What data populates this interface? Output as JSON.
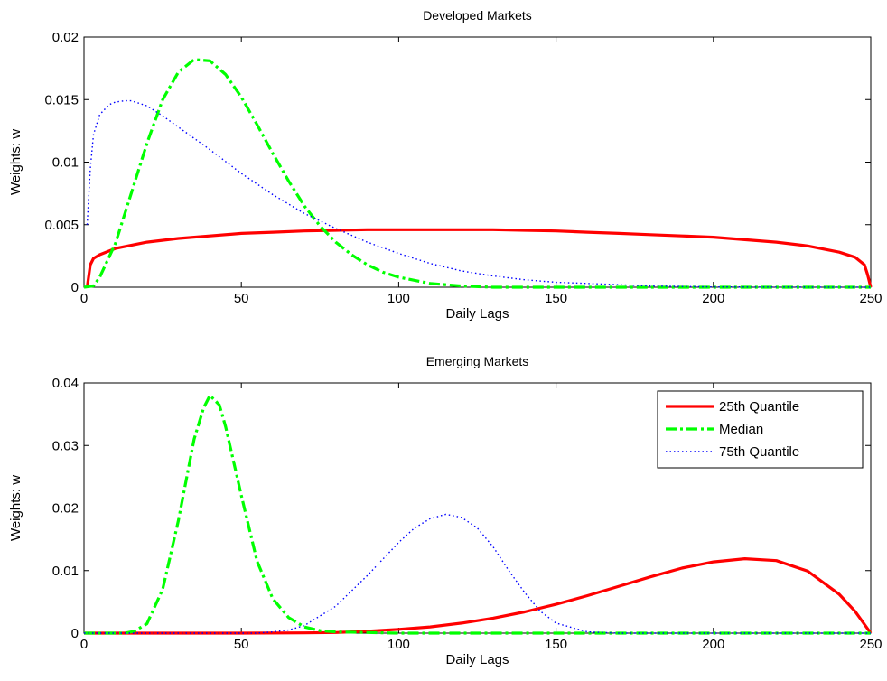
{
  "chart_data": [
    {
      "type": "line",
      "title": "Developed Markets",
      "xlabel": "Daily Lags",
      "ylabel": "Weights: w",
      "xlim": [
        0,
        250
      ],
      "ylim": [
        0,
        0.02
      ],
      "xticks": [
        0,
        50,
        100,
        150,
        200,
        250
      ],
      "yticks": [
        0,
        0.005,
        0.01,
        0.015,
        0.02
      ],
      "xtick_labels": [
        "0",
        "50",
        "100",
        "150",
        "200",
        "250"
      ],
      "ytick_labels": [
        "0",
        "0.005",
        "0.01",
        "0.015",
        "0.02"
      ],
      "grid": false,
      "legend": null,
      "series": [
        {
          "name": "25th Quantile",
          "color": "#ff0000",
          "style": "solid",
          "x": [
            1,
            2,
            3,
            5,
            10,
            20,
            30,
            40,
            50,
            60,
            70,
            80,
            90,
            100,
            110,
            120,
            130,
            140,
            150,
            160,
            170,
            180,
            190,
            200,
            210,
            220,
            230,
            240,
            245,
            248,
            249,
            250
          ],
          "y": [
            0,
            0.0018,
            0.0023,
            0.0026,
            0.0031,
            0.0036,
            0.0039,
            0.0041,
            0.0043,
            0.0044,
            0.0045,
            0.00455,
            0.0046,
            0.0046,
            0.0046,
            0.0046,
            0.0046,
            0.00455,
            0.0045,
            0.0044,
            0.0043,
            0.0042,
            0.0041,
            0.004,
            0.0038,
            0.0036,
            0.0033,
            0.0028,
            0.0024,
            0.0018,
            0.001,
            0
          ]
        },
        {
          "name": "Median",
          "color": "#00ff00",
          "style": "dashdot",
          "x": [
            0,
            3,
            5,
            10,
            15,
            20,
            25,
            30,
            35,
            40,
            45,
            50,
            55,
            60,
            65,
            70,
            75,
            80,
            85,
            90,
            95,
            100,
            110,
            120,
            130,
            150,
            200,
            250
          ],
          "y": [
            0,
            0.0001,
            0.0008,
            0.0035,
            0.0075,
            0.0115,
            0.015,
            0.0172,
            0.0182,
            0.0181,
            0.017,
            0.0152,
            0.013,
            0.0107,
            0.0085,
            0.0065,
            0.0049,
            0.0036,
            0.0026,
            0.0018,
            0.0012,
            0.0008,
            0.0003,
            0.0001,
            0,
            0,
            0,
            0
          ]
        },
        {
          "name": "75th Quantile",
          "color": "#0000ff",
          "style": "dotted",
          "x": [
            1,
            2,
            3,
            5,
            8,
            10,
            13,
            15,
            20,
            25,
            30,
            40,
            50,
            60,
            70,
            80,
            90,
            100,
            110,
            120,
            130,
            140,
            150,
            160,
            170,
            180,
            200,
            250
          ],
          "y": [
            0.005,
            0.0095,
            0.0122,
            0.0138,
            0.0146,
            0.0148,
            0.0149,
            0.0149,
            0.0145,
            0.0137,
            0.0128,
            0.011,
            0.0091,
            0.0074,
            0.0059,
            0.0047,
            0.0036,
            0.0027,
            0.0019,
            0.0013,
            0.0009,
            0.0006,
            0.0004,
            0.0003,
            0.0002,
            0.0001,
            2e-05,
            0
          ]
        }
      ]
    },
    {
      "type": "line",
      "title": "Emerging Markets",
      "xlabel": "Daily Lags",
      "ylabel": "Weights: w",
      "xlim": [
        0,
        250
      ],
      "ylim": [
        0,
        0.04
      ],
      "xticks": [
        0,
        50,
        100,
        150,
        200,
        250
      ],
      "yticks": [
        0,
        0.01,
        0.02,
        0.03,
        0.04
      ],
      "xtick_labels": [
        "0",
        "50",
        "100",
        "150",
        "200",
        "250"
      ],
      "ytick_labels": [
        "0",
        "0.01",
        "0.02",
        "0.03",
        "0.04"
      ],
      "grid": false,
      "legend": "top-right",
      "series": [
        {
          "name": "25th Quantile",
          "color": "#ff0000",
          "style": "solid",
          "x": [
            0,
            50,
            70,
            80,
            90,
            100,
            110,
            120,
            130,
            140,
            150,
            160,
            170,
            180,
            190,
            200,
            210,
            220,
            230,
            240,
            245,
            250
          ],
          "y": [
            0,
            0,
            5e-05,
            0.0001,
            0.0003,
            0.0006,
            0.001,
            0.0016,
            0.0024,
            0.0034,
            0.0046,
            0.006,
            0.0075,
            0.009,
            0.0104,
            0.0114,
            0.0119,
            0.0116,
            0.0099,
            0.0062,
            0.0035,
            0
          ]
        },
        {
          "name": "Median",
          "color": "#00ff00",
          "style": "dashdot",
          "x": [
            0,
            13,
            16,
            20,
            25,
            30,
            35,
            38,
            40,
            43,
            45,
            50,
            55,
            60,
            65,
            70,
            75,
            80,
            90,
            100,
            150,
            250
          ],
          "y": [
            0,
            0,
            0.0003,
            0.0015,
            0.007,
            0.018,
            0.031,
            0.036,
            0.038,
            0.0365,
            0.033,
            0.022,
            0.0115,
            0.0055,
            0.0025,
            0.001,
            0.0004,
            0.0002,
            0.0001,
            0,
            0,
            0
          ]
        },
        {
          "name": "75th Quantile",
          "color": "#0000ff",
          "style": "dotted",
          "x": [
            0,
            55,
            60,
            65,
            70,
            80,
            90,
            100,
            105,
            110,
            115,
            120,
            125,
            130,
            135,
            140,
            145,
            150,
            160,
            170,
            250
          ],
          "y": [
            0,
            0,
            0.0002,
            0.0005,
            0.0012,
            0.0043,
            0.0092,
            0.0145,
            0.0168,
            0.0183,
            0.019,
            0.0185,
            0.0168,
            0.0138,
            0.01,
            0.0065,
            0.0035,
            0.0016,
            0.0002,
            0,
            0
          ]
        }
      ]
    }
  ]
}
